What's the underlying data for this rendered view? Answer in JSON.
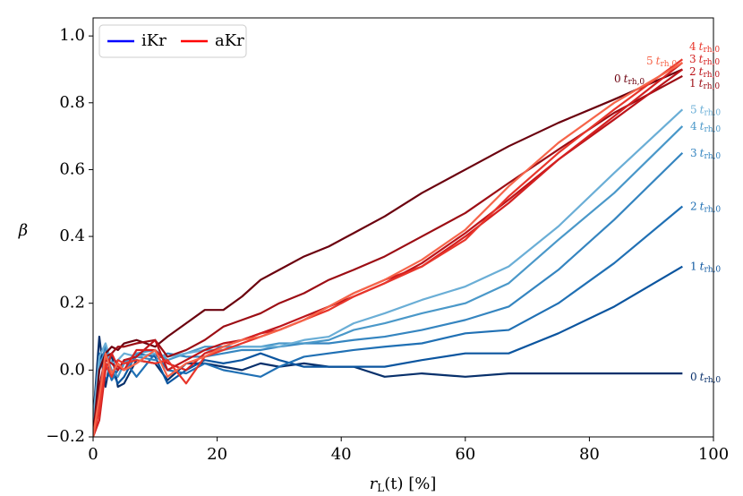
{
  "chart_data": {
    "type": "line",
    "xlabel": {
      "symbol": "r",
      "subscript": "L",
      "rest": "(t) [%]"
    },
    "ylabel": "β",
    "xlim": [
      0,
      100
    ],
    "xticks": [
      0,
      20,
      40,
      60,
      80,
      100
    ],
    "ylim": [
      -0.2,
      1.054
    ],
    "yticks": [
      {
        "value": -0.2,
        "label": "−0.2"
      },
      {
        "value": 0,
        "label": "0.0"
      },
      0.2,
      0.4,
      0.6,
      0.8,
      {
        "value": 1.0,
        "label": "1.0"
      }
    ],
    "legend_position": "upper left",
    "legend": [
      {
        "name": "iKr",
        "color": "#0000ff"
      },
      {
        "name": "aKr",
        "color": "#ff0000"
      }
    ],
    "end_label_symbol": "t",
    "end_label_subscript": "rh,0",
    "x": [
      0,
      1,
      2,
      3,
      4,
      5,
      7,
      10,
      12,
      15,
      18,
      21,
      24,
      27,
      30,
      34,
      38,
      42,
      47,
      53,
      60,
      67,
      75,
      84,
      95
    ],
    "series": [
      {
        "name": "0",
        "color": "#08306b",
        "values": [
          -0.15,
          0.1,
          -0.05,
          0.05,
          -0.05,
          -0.04,
          0.03,
          0.02,
          -0.03,
          0.02,
          0.02,
          0.01,
          0.0,
          0.02,
          0.01,
          0.02,
          0.01,
          0.01,
          -0.02,
          -0.01,
          -0.02,
          -0.01,
          -0.01,
          -0.01,
          -0.01
        ]
      },
      {
        "name": "1",
        "color": "#0b559f",
        "values": [
          -0.2,
          0.05,
          -0.03,
          0.0,
          -0.04,
          -0.02,
          0.05,
          0.04,
          -0.04,
          0.0,
          0.03,
          0.02,
          0.03,
          0.05,
          0.03,
          0.01,
          0.01,
          0.01,
          0.01,
          0.03,
          0.05,
          0.05,
          0.11,
          0.19,
          0.31
        ]
      },
      {
        "name": "2",
        "color": "#2070b4",
        "values": [
          -0.2,
          0.03,
          0.02,
          -0.03,
          0.0,
          0.03,
          -0.02,
          0.05,
          0.0,
          -0.01,
          0.02,
          0.0,
          -0.01,
          -0.02,
          0.01,
          0.04,
          0.05,
          0.06,
          0.07,
          0.08,
          0.11,
          0.12,
          0.2,
          0.32,
          0.49
        ]
      },
      {
        "name": "3",
        "color": "#3585c0",
        "values": [
          -0.18,
          0.0,
          0.07,
          -0.02,
          0.02,
          0.0,
          0.04,
          0.03,
          0.05,
          0.04,
          0.04,
          0.05,
          0.06,
          0.06,
          0.07,
          0.08,
          0.08,
          0.09,
          0.1,
          0.12,
          0.15,
          0.19,
          0.3,
          0.45,
          0.65
        ]
      },
      {
        "name": "4",
        "color": "#4a98c9",
        "values": [
          -0.2,
          0.02,
          0.05,
          0.0,
          -0.02,
          0.02,
          0.05,
          0.06,
          0.03,
          0.05,
          0.07,
          0.07,
          0.07,
          0.07,
          0.08,
          0.08,
          0.09,
          0.12,
          0.14,
          0.17,
          0.2,
          0.26,
          0.39,
          0.53,
          0.73
        ]
      },
      {
        "name": "5",
        "color": "#6aaed6",
        "values": [
          -0.15,
          0.04,
          0.08,
          0.02,
          0.03,
          0.05,
          0.04,
          0.05,
          0.04,
          0.05,
          0.06,
          0.06,
          0.07,
          0.07,
          0.07,
          0.09,
          0.1,
          0.14,
          0.17,
          0.21,
          0.25,
          0.31,
          0.43,
          0.59,
          0.78
        ]
      },
      {
        "name": "0",
        "color": "#6b010e",
        "values": [
          -0.2,
          0.0,
          0.05,
          0.07,
          0.06,
          0.08,
          0.09,
          0.07,
          0.1,
          0.14,
          0.18,
          0.18,
          0.22,
          0.27,
          0.3,
          0.34,
          0.37,
          0.41,
          0.46,
          0.53,
          0.6,
          0.67,
          0.74,
          0.81,
          0.9
        ]
      },
      {
        "name": "1",
        "color": "#9c0d14",
        "values": [
          -0.2,
          -0.05,
          0.04,
          0.05,
          0.07,
          0.07,
          0.08,
          0.09,
          0.04,
          0.06,
          0.09,
          0.13,
          0.15,
          0.17,
          0.2,
          0.23,
          0.27,
          0.3,
          0.34,
          0.4,
          0.47,
          0.56,
          0.66,
          0.77,
          0.88
        ]
      },
      {
        "name": "2",
        "color": "#bc141a",
        "values": [
          -0.2,
          -0.1,
          0.03,
          0.02,
          0.0,
          0.03,
          0.04,
          0.09,
          0.0,
          0.03,
          0.06,
          0.08,
          0.09,
          0.11,
          0.13,
          0.16,
          0.19,
          0.22,
          0.26,
          0.32,
          0.41,
          0.51,
          0.63,
          0.75,
          0.9
        ]
      },
      {
        "name": "3",
        "color": "#d42020",
        "values": [
          -0.2,
          -0.15,
          0.0,
          0.05,
          0.01,
          0.0,
          0.06,
          0.06,
          0.02,
          0.0,
          0.05,
          0.07,
          0.09,
          0.11,
          0.12,
          0.15,
          0.19,
          0.23,
          0.27,
          0.31,
          0.4,
          0.5,
          0.63,
          0.76,
          0.92
        ]
      },
      {
        "name": "4",
        "color": "#e8352a",
        "values": [
          -0.2,
          -0.12,
          0.02,
          -0.02,
          0.03,
          0.02,
          0.03,
          0.02,
          0.03,
          -0.04,
          0.04,
          0.06,
          0.08,
          0.1,
          0.12,
          0.15,
          0.18,
          0.22,
          0.26,
          0.31,
          0.39,
          0.52,
          0.65,
          0.78,
          0.93
        ]
      },
      {
        "name": "5",
        "color": "#f6654a",
        "values": [
          -0.2,
          -0.08,
          0.05,
          -0.01,
          0.02,
          0.0,
          0.02,
          0.06,
          -0.02,
          0.02,
          0.04,
          0.07,
          0.09,
          0.1,
          0.12,
          0.15,
          0.19,
          0.23,
          0.27,
          0.33,
          0.42,
          0.55,
          0.68,
          0.8,
          0.92
        ]
      }
    ]
  }
}
